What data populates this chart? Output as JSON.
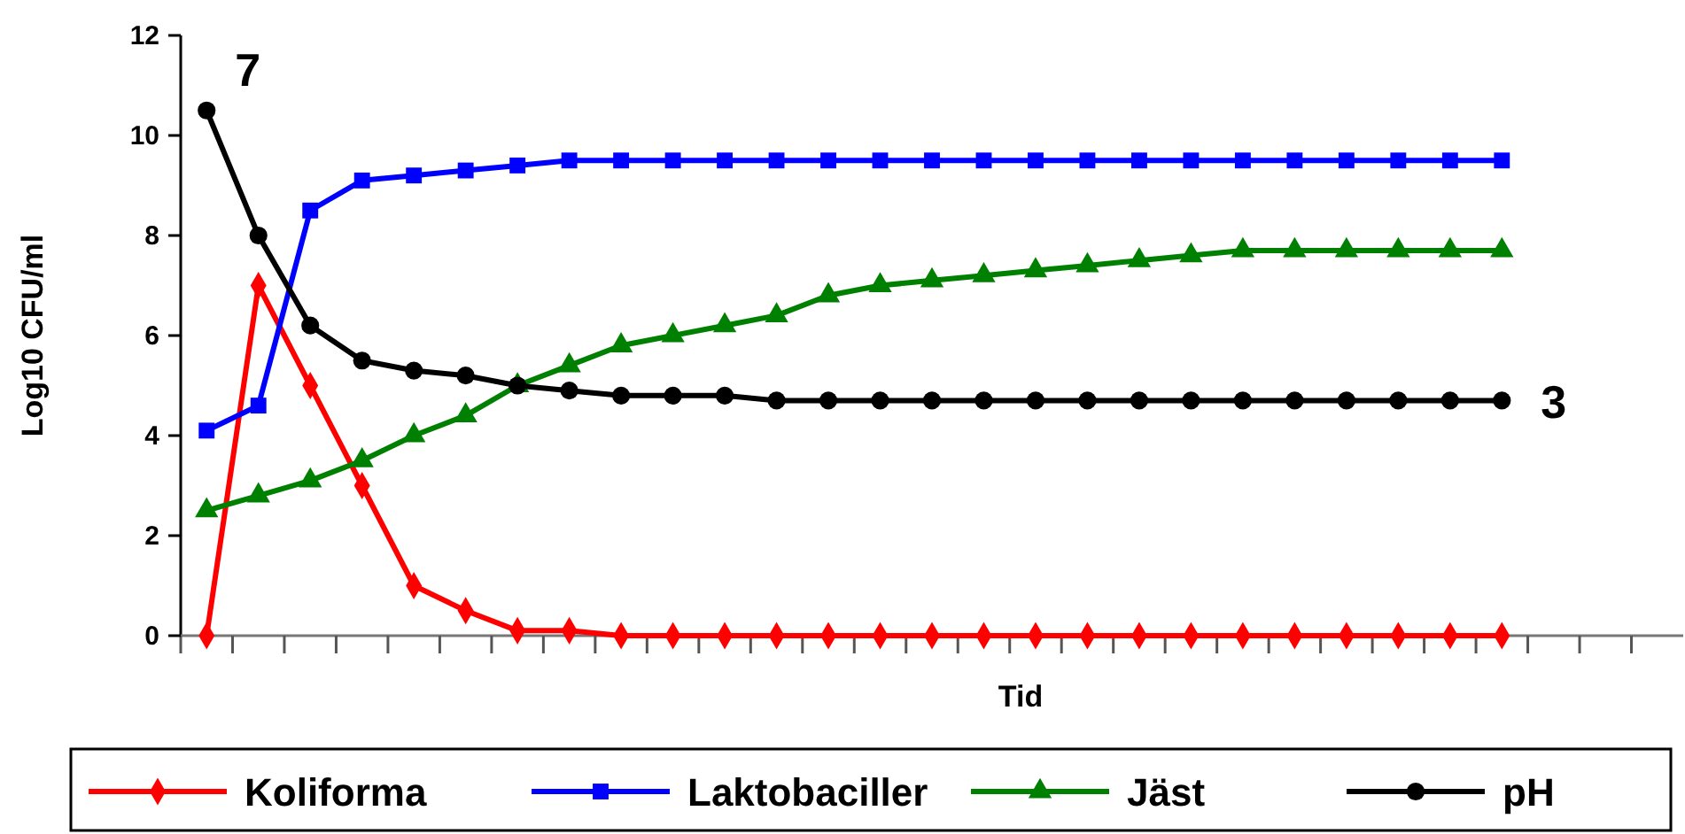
{
  "chart_data": {
    "type": "line",
    "ylabel": "Log10 CFU/ml",
    "xlabel": "Tid",
    "categories": [
      null,
      null,
      null,
      null,
      null,
      null,
      null,
      null,
      null,
      null,
      null,
      null,
      null,
      null,
      null,
      null,
      null,
      null,
      null,
      null,
      null,
      null,
      null,
      null,
      null,
      null,
      null,
      null,
      null
    ],
    "ylim": [
      0,
      12
    ],
    "yticks": [
      0,
      2,
      4,
      6,
      8,
      10,
      12
    ],
    "legend": "bottom",
    "grid": false,
    "series": [
      {
        "name": "Koliforma",
        "color": "#ff0000",
        "marker": "diamond",
        "values": [
          0,
          7,
          5,
          3,
          1,
          0.5,
          0.1,
          0.1,
          0,
          0,
          0,
          0,
          0,
          0,
          0,
          0,
          0,
          0,
          0,
          0,
          0,
          0,
          0,
          0,
          0,
          0,
          null,
          null,
          null
        ]
      },
      {
        "name": "Laktobaciller",
        "color": "#0000ff",
        "marker": "square",
        "values": [
          4.1,
          4.6,
          8.5,
          9.1,
          9.2,
          9.3,
          9.4,
          9.5,
          9.5,
          9.5,
          9.5,
          9.5,
          9.5,
          9.5,
          9.5,
          9.5,
          9.5,
          9.5,
          9.5,
          9.5,
          9.5,
          9.5,
          9.5,
          9.5,
          9.5,
          9.5,
          null,
          null,
          null
        ]
      },
      {
        "name": "Jäst",
        "color": "#008000",
        "marker": "triangle",
        "values": [
          2.5,
          2.8,
          3.1,
          3.5,
          4.0,
          4.4,
          5.0,
          5.4,
          5.8,
          6.0,
          6.2,
          6.4,
          6.8,
          7.0,
          7.1,
          7.2,
          7.3,
          7.4,
          7.5,
          7.6,
          7.7,
          7.7,
          7.7,
          7.7,
          7.7,
          7.7,
          null,
          null,
          null
        ]
      },
      {
        "name": "pH",
        "color": "#000000",
        "marker": "circle",
        "values": [
          10.5,
          8.0,
          6.2,
          5.5,
          5.3,
          5.2,
          5.0,
          4.9,
          4.8,
          4.8,
          4.8,
          4.7,
          4.7,
          4.7,
          4.7,
          4.7,
          4.7,
          4.7,
          4.7,
          4.7,
          4.7,
          4.7,
          4.7,
          4.7,
          4.7,
          4.7,
          null,
          null,
          null
        ]
      }
    ],
    "annotations": [
      "7",
      "3"
    ]
  }
}
